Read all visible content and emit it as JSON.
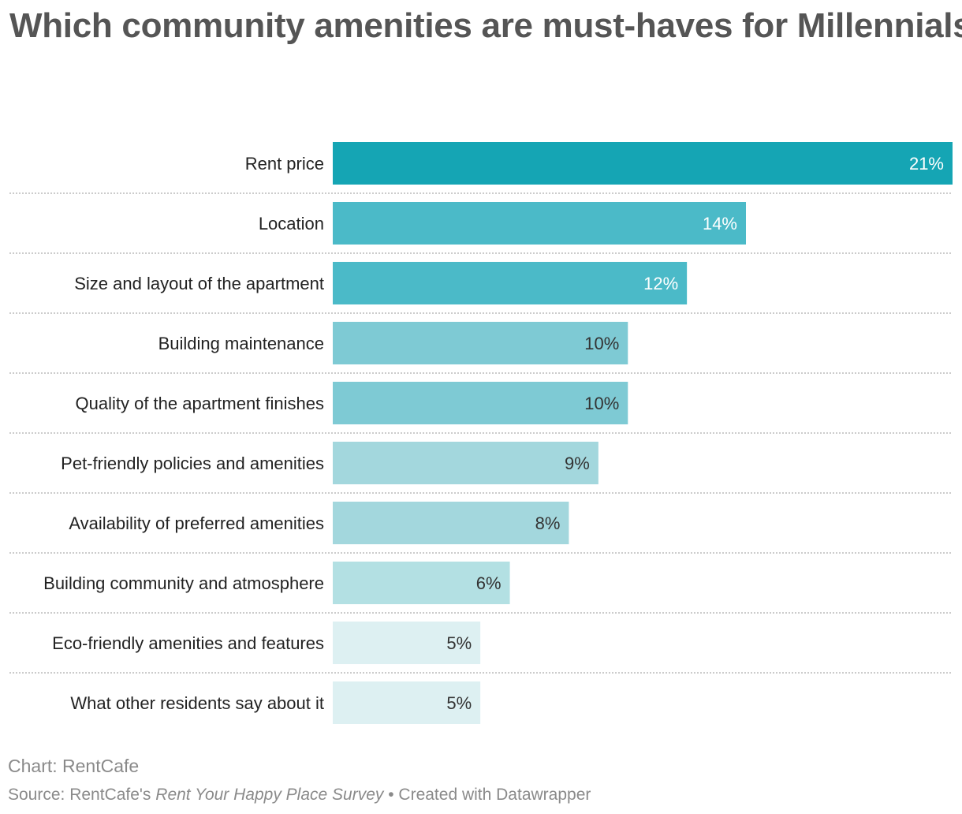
{
  "title": "Which community amenities are must-haves for Millennials?",
  "chart_data": {
    "type": "bar",
    "orientation": "horizontal",
    "title": "Which community amenities are must-haves for Millennials?",
    "categories": [
      "Rent price",
      "Location",
      "Size and layout of the apartment",
      "Building maintenance",
      "Quality of the apartment finishes",
      "Pet-friendly policies and amenities",
      "Availability of preferred amenities",
      "Building community and atmosphere",
      "Eco-friendly amenities and features",
      "What other residents say about it"
    ],
    "values": [
      21,
      14,
      12,
      10,
      10,
      9,
      8,
      6,
      5,
      5
    ],
    "value_labels": [
      "21%",
      "14%",
      "12%",
      "10%",
      "10%",
      "9%",
      "8%",
      "6%",
      "5%",
      "5%"
    ],
    "colors": [
      "#15a5b4",
      "#4bbac8",
      "#4bbac8",
      "#7ecad4",
      "#7ecad4",
      "#a3d7dd",
      "#a3d7dd",
      "#b3e0e3",
      "#ddf0f2",
      "#ddf0f2"
    ],
    "label_colors": [
      "#ffffff",
      "#ffffff",
      "#ffffff",
      "#333333",
      "#333333",
      "#333333",
      "#333333",
      "#333333",
      "#333333",
      "#333333"
    ],
    "xlim": [
      0,
      21
    ],
    "xlabel": "",
    "ylabel": ""
  },
  "footer": {
    "chart_credit": "Chart: RentCafe",
    "source_prefix": "Source: RentCafe's ",
    "source_name": "Rent Your Happy Place Survey",
    "source_suffix": " • Created with Datawrapper"
  }
}
